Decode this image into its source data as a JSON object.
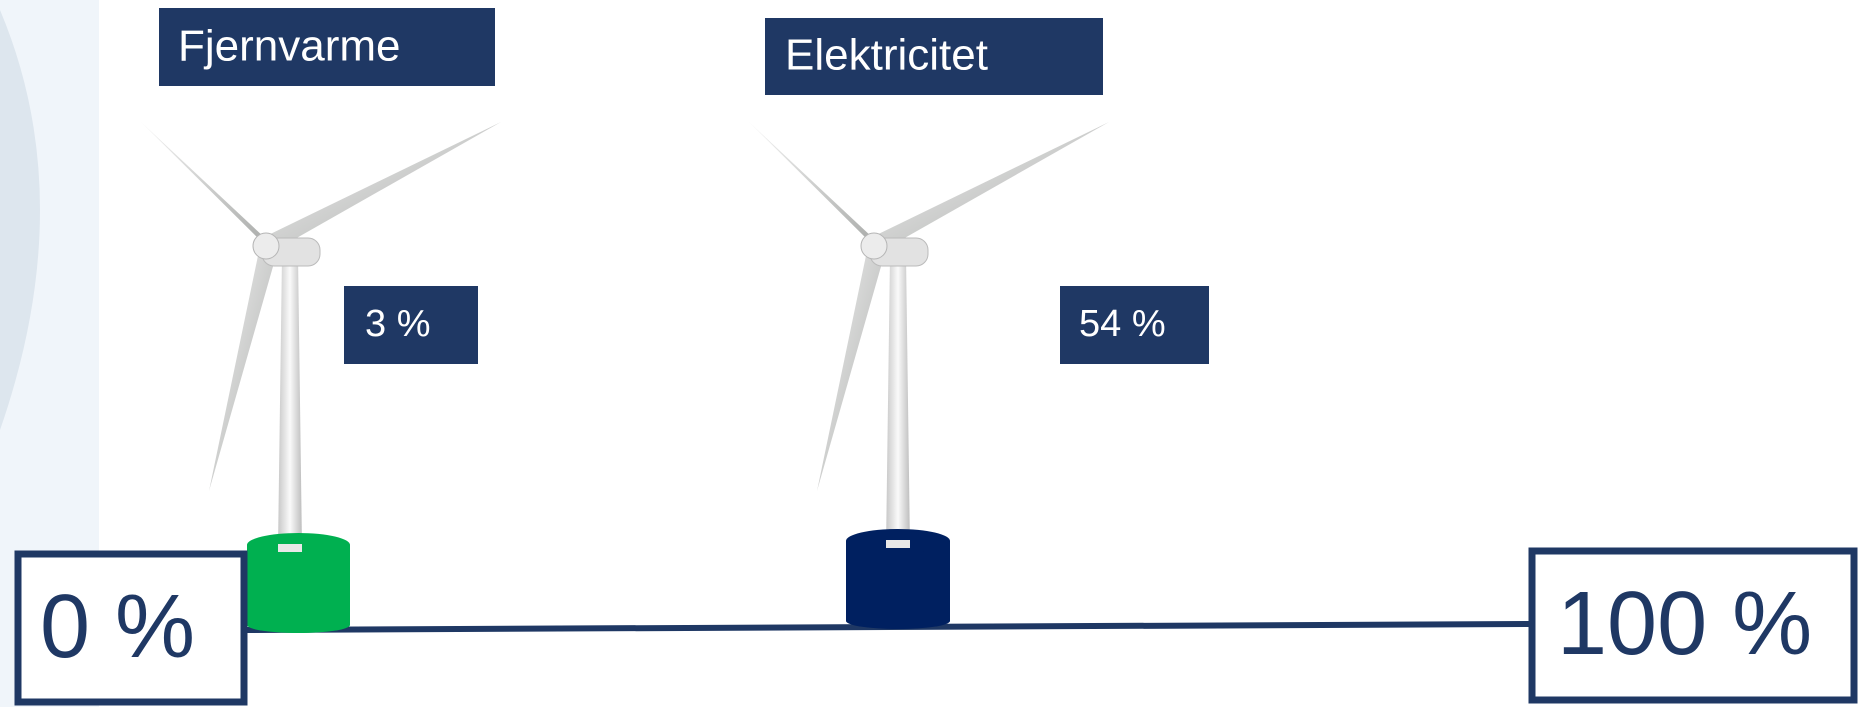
{
  "items": [
    {
      "label": "Fjernvarme",
      "value": "3 %"
    },
    {
      "label": "Elektricitet",
      "value": "54 %"
    }
  ],
  "scale": {
    "min": "0 %",
    "max": "100 %"
  }
}
